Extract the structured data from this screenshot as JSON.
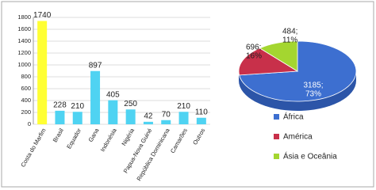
{
  "chart_data": [
    {
      "type": "bar",
      "categories": [
        "Costa do Marfim",
        "Brasil",
        "Equador",
        "Gana",
        "Indonésia",
        "Nigéria",
        "Papua-Nova Guiné",
        "República Dominicana",
        "Camarões",
        "Outros"
      ],
      "values": [
        1740,
        228,
        210,
        897,
        405,
        250,
        42,
        70,
        210,
        110
      ],
      "colors": [
        "#ffff33",
        "#4fd3f2",
        "#4fd3f2",
        "#4fd3f2",
        "#4fd3f2",
        "#4fd3f2",
        "#4fd3f2",
        "#4fd3f2",
        "#4fd3f2",
        "#4fd3f2"
      ],
      "ylim": [
        0,
        1800
      ],
      "yticks": [
        0,
        200,
        400,
        600,
        800,
        1000,
        1200,
        1400,
        1600,
        1800
      ],
      "grid": true
    },
    {
      "type": "pie",
      "categories": [
        "África",
        "América",
        "Ásia e Oceânia"
      ],
      "values": [
        3185,
        696,
        484
      ],
      "value_labels": [
        [
          "3185;",
          "73%"
        ],
        [
          "696;",
          "16%"
        ],
        [
          "484;",
          "11%"
        ]
      ],
      "colors": [
        "#3d6fd0",
        "#c8304a",
        "#a4d630"
      ],
      "legend": "bottom"
    }
  ]
}
